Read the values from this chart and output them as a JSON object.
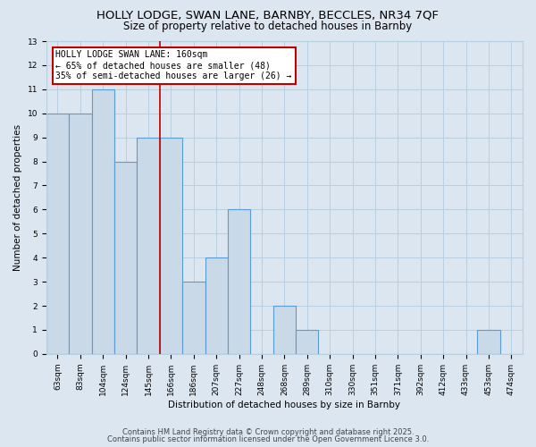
{
  "title1": "HOLLY LODGE, SWAN LANE, BARNBY, BECCLES, NR34 7QF",
  "title2": "Size of property relative to detached houses in Barnby",
  "xlabel": "Distribution of detached houses by size in Barnby",
  "ylabel": "Number of detached properties",
  "categories": [
    "63sqm",
    "83sqm",
    "104sqm",
    "124sqm",
    "145sqm",
    "166sqm",
    "186sqm",
    "207sqm",
    "227sqm",
    "248sqm",
    "268sqm",
    "289sqm",
    "310sqm",
    "330sqm",
    "351sqm",
    "371sqm",
    "392sqm",
    "412sqm",
    "433sqm",
    "453sqm",
    "474sqm"
  ],
  "values": [
    10,
    10,
    11,
    8,
    9,
    9,
    3,
    4,
    6,
    0,
    2,
    1,
    0,
    0,
    0,
    0,
    0,
    0,
    0,
    1,
    0
  ],
  "bar_color": "#c9d9e8",
  "bar_edge_color": "#5b9bd5",
  "bar_linewidth": 0.8,
  "grid_color": "#b8cfe0",
  "background_color": "#dce6f1",
  "red_line_x": 4.5,
  "red_line_color": "#c00000",
  "annotation_title": "HOLLY LODGE SWAN LANE: 160sqm",
  "annotation_line1": "← 65% of detached houses are smaller (48)",
  "annotation_line2": "35% of semi-detached houses are larger (26) →",
  "annotation_box_color": "#ffffff",
  "annotation_box_edge": "#c00000",
  "ylim": [
    0,
    13
  ],
  "yticks": [
    0,
    1,
    2,
    3,
    4,
    5,
    6,
    7,
    8,
    9,
    10,
    11,
    12,
    13
  ],
  "footnote1": "Contains HM Land Registry data © Crown copyright and database right 2025.",
  "footnote2": "Contains public sector information licensed under the Open Government Licence 3.0.",
  "title_fontsize": 9.5,
  "subtitle_fontsize": 8.5,
  "axis_label_fontsize": 7.5,
  "tick_fontsize": 6.5,
  "annotation_fontsize": 7,
  "footnote_fontsize": 6
}
